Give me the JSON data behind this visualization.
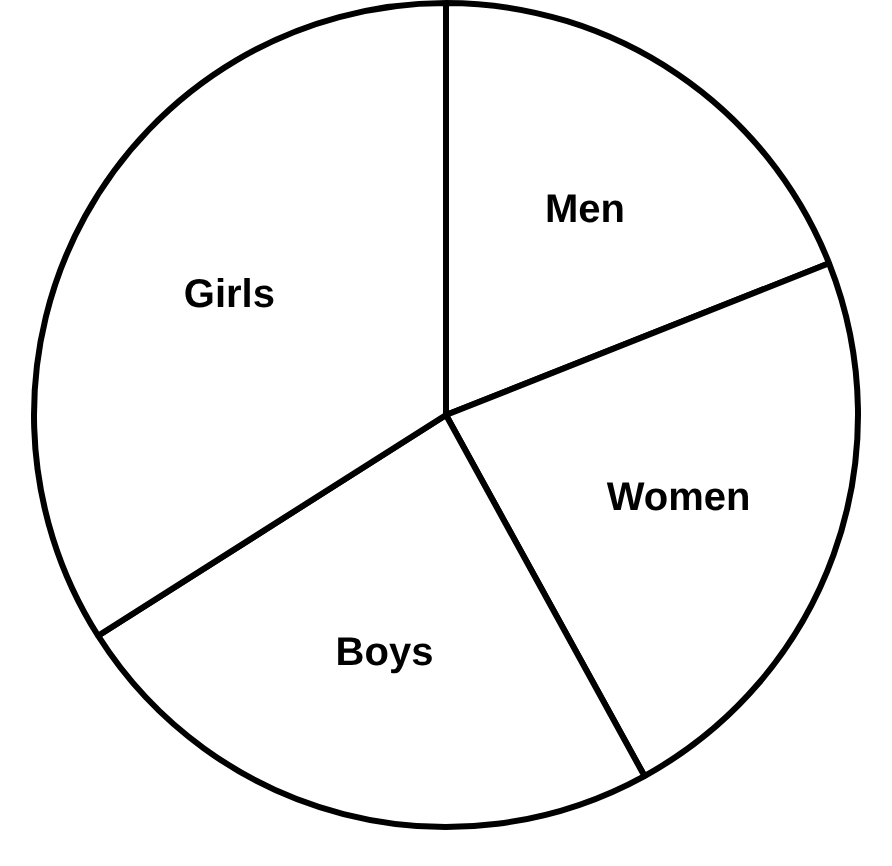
{
  "chart_data": {
    "type": "pie",
    "categories": [
      "Men",
      "Women",
      "Boys",
      "Girls"
    ],
    "values": [
      19,
      23,
      24,
      34
    ],
    "colors": [
      "#ffffff",
      "#ffffff",
      "#ffffff",
      "#ffffff"
    ],
    "legend": false
  }
}
